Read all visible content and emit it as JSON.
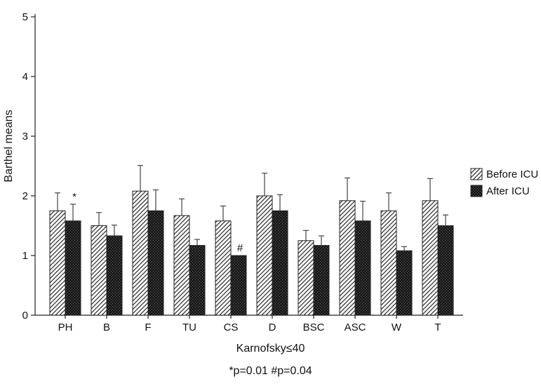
{
  "chart_data": {
    "type": "bar",
    "categories": [
      "PH",
      "B",
      "F",
      "TU",
      "CS",
      "D",
      "BSC",
      "ASC",
      "W",
      "T"
    ],
    "series": [
      {
        "name": "Before ICU",
        "values": [
          1.75,
          1.5,
          2.08,
          1.67,
          1.58,
          2.0,
          1.25,
          1.92,
          1.75,
          1.92
        ],
        "errors": [
          0.3,
          0.22,
          0.43,
          0.28,
          0.25,
          0.38,
          0.17,
          0.38,
          0.3,
          0.37
        ],
        "pattern": "diagonal-hatch"
      },
      {
        "name": "After ICU",
        "values": [
          1.58,
          1.33,
          1.75,
          1.17,
          1.0,
          1.75,
          1.17,
          1.58,
          1.08,
          1.5
        ],
        "errors": [
          0.28,
          0.18,
          0.35,
          0.1,
          0.0,
          0.27,
          0.16,
          0.33,
          0.07,
          0.18
        ],
        "pattern": "dark-crosshatch"
      }
    ],
    "annotations": [
      {
        "category": "PH",
        "series": "After ICU",
        "text": "*"
      },
      {
        "category": "CS",
        "series": "After ICU",
        "text": "#"
      }
    ],
    "ylabel": "Barthel means",
    "xlabel": "Karnofsky≤40",
    "ylim": [
      0,
      5
    ],
    "yticks": [
      "0",
      "1",
      "2",
      "3",
      "4",
      "5"
    ],
    "legend_position": "right",
    "grid": false,
    "footnote": "*p=0.01  #p=0.04"
  }
}
